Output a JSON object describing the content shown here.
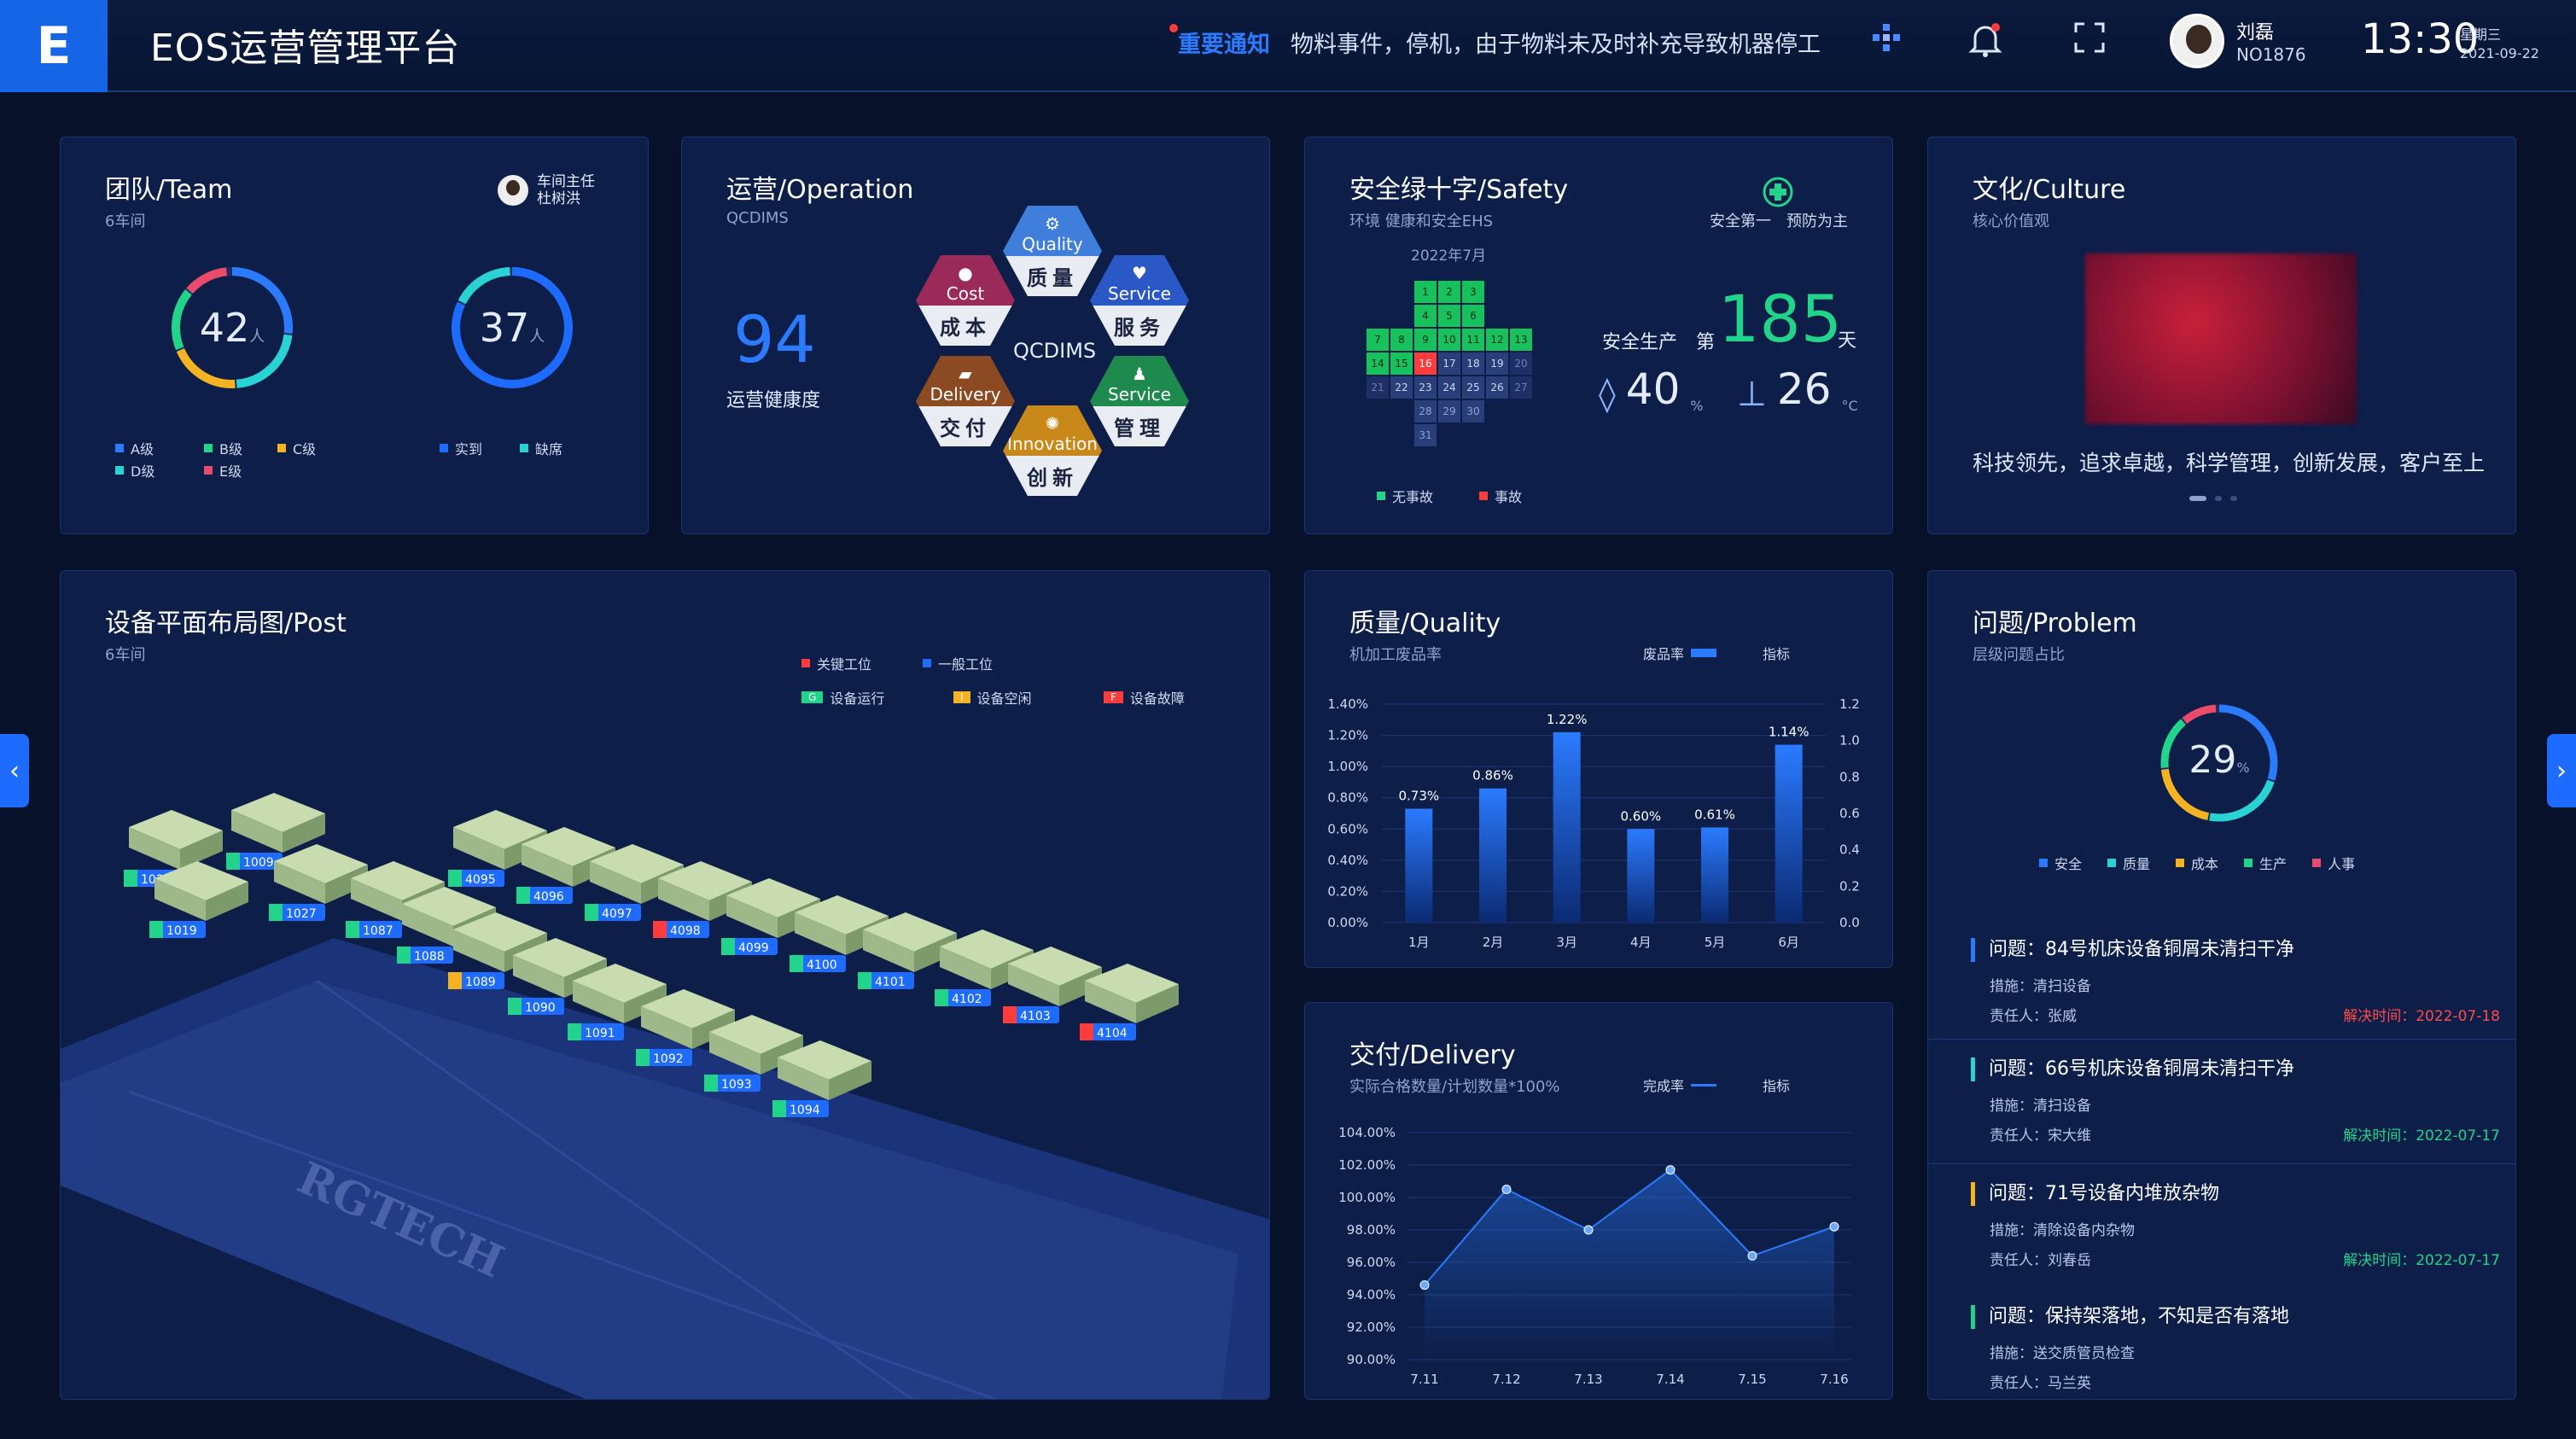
{
  "header": {
    "logo_letter": "E",
    "title": "EOS运营管理平台",
    "notice_tag": "重要通知",
    "notice_msg": "物料事件，停机，由于物料未及时补充导致机器停工",
    "user_name": "刘磊",
    "user_no": "NO1876",
    "time": "13:30",
    "weekday": "星期三",
    "date": "2021-09-22"
  },
  "team": {
    "title": "团队/Team",
    "subtitle": "6车间",
    "leader_role": "车间主任",
    "leader_name": "杜树洪",
    "ring1_value": "42",
    "ring2_value": "37",
    "unit": "人",
    "legend1": [
      "A级",
      "B级",
      "C级",
      "D级",
      "E级"
    ],
    "legend2": [
      "实到",
      "缺席"
    ]
  },
  "operation": {
    "title": "运营/Operation",
    "subtitle": "QCDIMS",
    "score": "94",
    "score_label": "运营健康度",
    "center": "QCDIMS",
    "hexes": [
      {
        "en": "Quality",
        "cn": "质量",
        "color": "#3f7edb"
      },
      {
        "en": "Cost",
        "cn": "成本",
        "color": "#9a2a5a"
      },
      {
        "en": "Service",
        "cn": "服务",
        "color": "#2a58c7"
      },
      {
        "en": "Delivery",
        "cn": "交付",
        "color": "#8c4a23"
      },
      {
        "en": "Service",
        "cn": "管理",
        "color": "#1e8a4e"
      },
      {
        "en": "Innovation",
        "cn": "创新",
        "color": "#c8881a"
      }
    ]
  },
  "safety": {
    "title": "安全绿十字/Safety",
    "subtitle": "环境 健康和安全EHS",
    "slogan": "安全第一　预防为主",
    "month": "2022年7月",
    "label_prod": "安全生产",
    "label_di": "第",
    "days": "185",
    "label_day": "天",
    "humidity": "40",
    "humidity_unit": "%",
    "temp": "26",
    "temp_unit": "°C",
    "legend": [
      "无事故",
      "事故"
    ],
    "calendar_rows": [
      [
        "1",
        "2",
        "3"
      ],
      [
        "4",
        "5",
        "6"
      ],
      [
        "7",
        "8",
        "9",
        "10",
        "11",
        "12",
        "13"
      ],
      [
        "14",
        "15",
        "16",
        "17",
        "18",
        "19",
        "20"
      ],
      [
        "21",
        "22",
        "23",
        "24",
        "25",
        "26",
        "27"
      ],
      [
        "28",
        "29",
        "30"
      ],
      [
        "31"
      ]
    ]
  },
  "culture": {
    "title": "文化/Culture",
    "subtitle": "核心价值观",
    "values": "科技领先，追求卓越，科学管理，创新发展，客户至上"
  },
  "layout": {
    "title": "设备平面布局图/Post",
    "subtitle": "6车间",
    "legend_key": "关键工位",
    "legend_normal": "一般工位",
    "legend_run": "设备运行",
    "legend_idle": "设备空闲",
    "legend_fault": "设备故障",
    "run_tag": "G",
    "idle_tag": "I",
    "fault_tag": "F",
    "watermark": "RGTECH",
    "machines": [
      "1026",
      "1009",
      "1019",
      "1027",
      "4095",
      "4096",
      "4097",
      "4098",
      "4099",
      "4100",
      "4101",
      "4102",
      "4103",
      "4104",
      "1087",
      "1088",
      "1089",
      "1090",
      "1091",
      "1092",
      "1093",
      "1094"
    ]
  },
  "quality": {
    "title": "质量/Quality",
    "subtitle": "机加工废品率",
    "legend_bar": "废品率",
    "legend_line": "指标"
  },
  "delivery": {
    "title": "交付/Delivery",
    "subtitle": "实际合格数量/计划数量*100%",
    "legend_rate": "完成率",
    "legend_line": "指标"
  },
  "problem": {
    "title": "问题/Problem",
    "subtitle": "层级问题占比",
    "percent": "29",
    "unit": "%",
    "legend": [
      "安全",
      "质量",
      "成本",
      "生产",
      "人事"
    ],
    "items": [
      {
        "t": "问题：84号机床设备铜屑未清扫干净",
        "m": "措施：清扫设备",
        "p": "责任人：张威",
        "d": "解决时间：2022-07-18",
        "c": "#2b7bff",
        "dc": "r"
      },
      {
        "t": "问题：66号机床设备铜屑未清扫干净",
        "m": "措施：清扫设备",
        "p": "责任人：宋大维",
        "d": "解决时间：2022-07-17",
        "c": "#2ad3d3",
        "dc": "g"
      },
      {
        "t": "问题：71号设备内堆放杂物",
        "m": "措施：清除设备内杂物",
        "p": "责任人：刘春岳",
        "d": "解决时间：2022-07-17",
        "c": "#f5b321",
        "dc": "g"
      },
      {
        "t": "问题：保持架落地，不知是否有落地",
        "m": "措施：送交质管员检查",
        "p": "责任人：马兰英",
        "d": "",
        "c": "#22d48a",
        "dc": "g"
      }
    ]
  },
  "colors": {
    "accent": "#1e6bff",
    "green": "#22d48a",
    "red": "#ff3b3b",
    "yellow": "#f5b321",
    "cyan": "#2ad3d3"
  },
  "chart_data": [
    {
      "type": "bar",
      "categories": [
        "1月",
        "2月",
        "3月",
        "4月",
        "5月",
        "6月"
      ],
      "series": [
        {
          "name": "废品率",
          "values": [
            0.73,
            0.86,
            1.22,
            0.6,
            0.61,
            1.14
          ]
        }
      ],
      "data_labels": [
        "0.73%",
        "0.86%",
        "1.22%",
        "0.60%",
        "0.61%",
        "1.14%"
      ],
      "ylim": [
        0,
        1.4
      ],
      "yticks": [
        "0.00%",
        "0.20%",
        "0.40%",
        "0.60%",
        "0.80%",
        "1.00%",
        "1.20%",
        "1.40%"
      ],
      "y2ticks": [
        "0.0",
        "0.2",
        "0.4",
        "0.6",
        "0.8",
        "1.0",
        "1.2"
      ]
    },
    {
      "type": "line",
      "categories": [
        "7.11",
        "7.12",
        "7.13",
        "7.14",
        "7.15",
        "7.16"
      ],
      "series": [
        {
          "name": "完成率",
          "values": [
            94.6,
            100.5,
            98.0,
            101.7,
            96.4,
            98.2
          ]
        }
      ],
      "ylim": [
        90,
        104
      ],
      "yticks": [
        "90.00%",
        "92.00%",
        "94.00%",
        "96.00%",
        "98.00%",
        "100.00%",
        "102.00%",
        "104.00%"
      ]
    }
  ]
}
